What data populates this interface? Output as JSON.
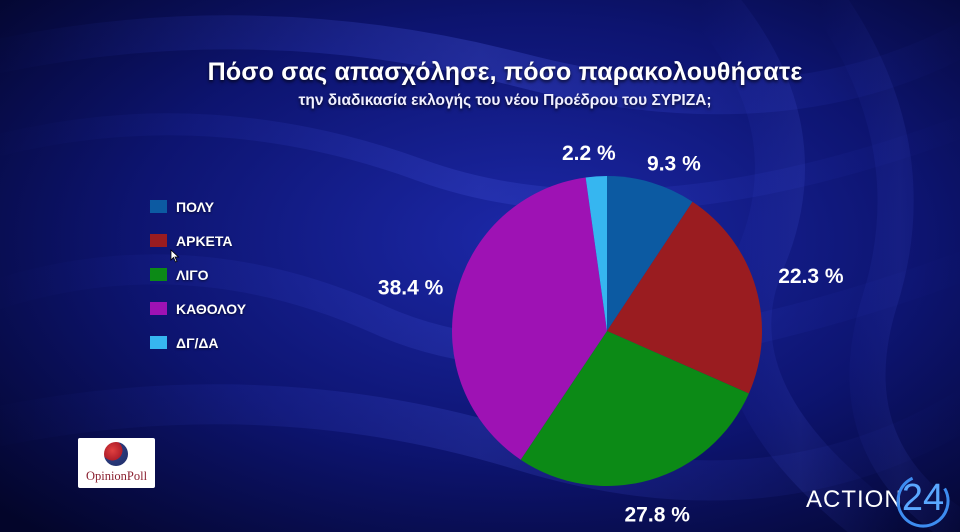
{
  "title": "Πόσο σας απασχόλησε, πόσο παρακολουθήσατε",
  "subtitle": "την διαδικασία εκλογής του νέου Προέδρου του ΣΥΡΙΖΑ;",
  "chart_data": {
    "type": "pie",
    "title": "Πόσο σας απασχόλησε, πόσο παρακολουθήσατε",
    "subtitle": "την διαδικασία εκλογής του νέου Προέδρου του ΣΥΡΙΖΑ;",
    "legend_position": "left",
    "categories": [
      "ΠΟΛΥ",
      "ΑΡΚΕΤΑ",
      "ΛΙΓΟ",
      "ΚΑΘΟΛΟΥ",
      "ΔΓ/ΔΑ"
    ],
    "values": [
      9.3,
      22.3,
      27.8,
      38.4,
      2.2
    ],
    "value_labels": [
      "9.3 %",
      "22.3 %",
      "27.8 %",
      "38.4 %",
      "2.2 %"
    ],
    "colors": [
      "#0c5aa2",
      "#9a1c20",
      "#0c8a16",
      "#9e12b4",
      "#36b6f0"
    ],
    "start": "12 o'clock",
    "direction": "clockwise",
    "slice_order": [
      "ΠΟΛΥ",
      "ΑΡΚΕΤΑ",
      "ΛΙΓΟ",
      "ΚΑΘΟΛΟΥ",
      "ΔΓ/ΔΑ"
    ]
  },
  "logos": {
    "pollster": "OpinionPoll",
    "channel_word": "ACTION",
    "channel_number": "24"
  },
  "colors": {
    "background": "#070a3a",
    "text": "#ffffff",
    "channel_accent": "#5aa8ff"
  }
}
